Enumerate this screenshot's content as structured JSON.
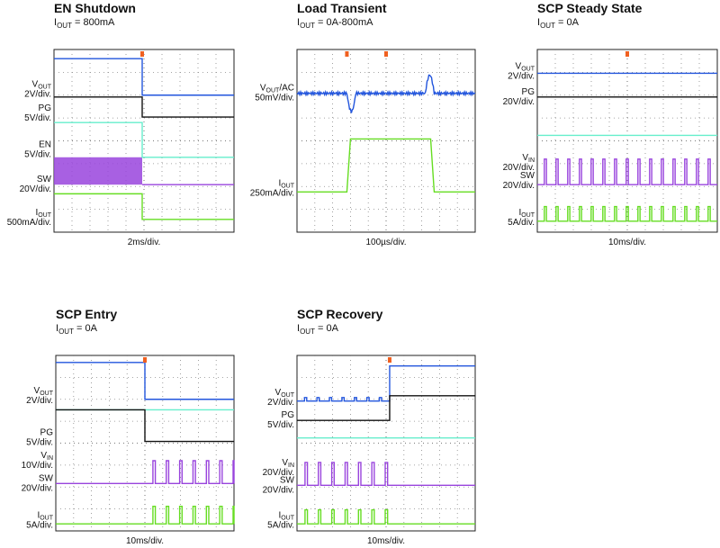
{
  "panels": [
    {
      "title": "EN Shutdown",
      "subtitle": {
        "name": "I",
        "sub": "OUT",
        "rest": " = 800mA"
      },
      "time": "2ms/div.",
      "labels": [
        {
          "name": "V",
          "sub": "OUT",
          "scale": "2V/div."
        },
        {
          "name": "PG",
          "scale": "5V/div."
        },
        {
          "name": "EN",
          "scale": "5V/div."
        },
        {
          "name": "SW",
          "scale": "20V/div."
        },
        {
          "name": "I",
          "sub": "OUT",
          "scale": "500mA/div."
        }
      ]
    },
    {
      "title": "Load Transient",
      "subtitle": {
        "name": "I",
        "sub": "OUT",
        "rest": " = 0A-800mA"
      },
      "time": "100µs/div.",
      "labels": [
        {
          "name": "V",
          "sub": "OUT",
          "suffix": "/AC",
          "scale": "50mV/div."
        },
        {
          "name": "I",
          "sub": "OUT",
          "scale": "250mA/div."
        }
      ]
    },
    {
      "title": "SCP Steady State",
      "subtitle": {
        "name": "I",
        "sub": "OUT",
        "rest": " = 0A"
      },
      "time": "10ms/div.",
      "labels": [
        {
          "name": "V",
          "sub": "OUT",
          "scale": "2V/div."
        },
        {
          "name": "PG",
          "scale": "20V/div."
        },
        {
          "name": "V",
          "sub": "IN",
          "scale": "20V/div."
        },
        {
          "name": "SW",
          "scale": "20V/div."
        },
        {
          "name": "I",
          "sub": "OUT",
          "scale": "5A/div."
        }
      ]
    },
    {
      "title": "SCP Entry",
      "subtitle": {
        "name": "I",
        "sub": "OUT",
        "rest": " = 0A"
      },
      "time": "10ms/div.",
      "labels": [
        {
          "name": "V",
          "sub": "OUT",
          "scale": "2V/div."
        },
        {
          "name": "PG",
          "scale": "5V/div."
        },
        {
          "name": "V",
          "sub": "IN",
          "scale": "10V/div."
        },
        {
          "name": "SW",
          "scale": "20V/div."
        },
        {
          "name": "I",
          "sub": "OUT",
          "scale": "5A/div."
        }
      ]
    },
    {
      "title": "SCP Recovery",
      "subtitle": {
        "name": "I",
        "sub": "OUT",
        "rest": " = 0A"
      },
      "time": "10ms/div.",
      "labels": [
        {
          "name": "V",
          "sub": "OUT",
          "scale": "2V/div."
        },
        {
          "name": "PG",
          "scale": "5V/div."
        },
        {
          "name": "V",
          "sub": "IN",
          "scale": "20V/div."
        },
        {
          "name": "SW",
          "scale": "20V/div."
        },
        {
          "name": "I",
          "sub": "OUT",
          "scale": "5A/div."
        }
      ]
    }
  ]
}
